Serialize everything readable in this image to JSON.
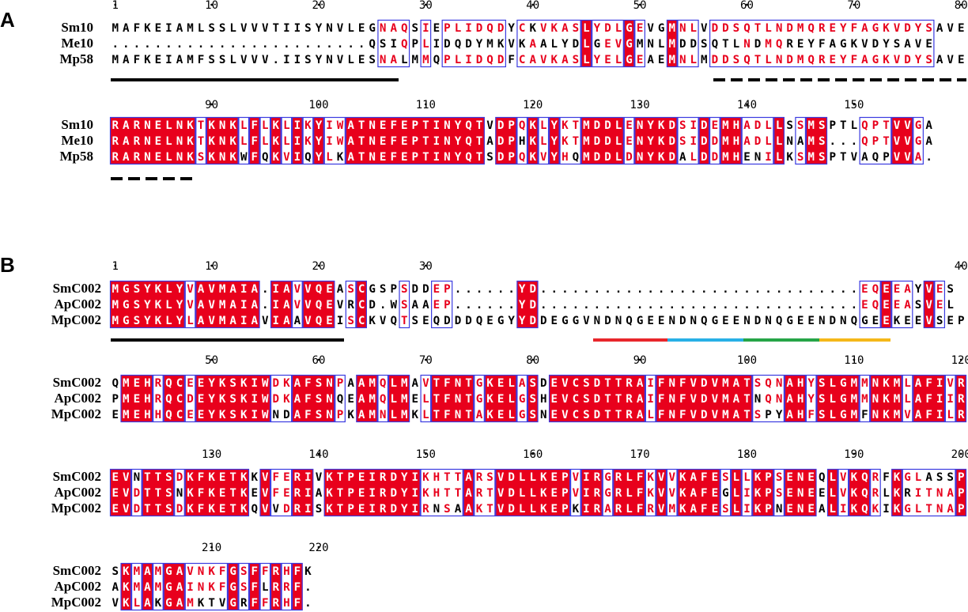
{
  "colors": {
    "identical_bg": "#e8001c",
    "identical_fg": "#ffffff",
    "similar_fg": "#e8001c",
    "box_border": "#3a3ae0",
    "plain_fg": "#000000",
    "feature_red": "#e8262b",
    "feature_blue": "#28b0e6",
    "feature_green": "#26a548",
    "feature_yellow": "#f5b81a"
  },
  "panels": [
    {
      "label": "A",
      "blocks": [
        {
          "names": [
            "Sm10",
            "Me10",
            "Mp58"
          ],
          "sequences": [
            "MAFKEIAMLSSLVVVTIISYNVLEGNAQSIEPLIDQDYCKVKASLYDLGEVGMNLVDDSQTLNDMQREYFAGKVDYSAVE",
            "........................QSIQPLIDQDYMKVKAALYDLGEVGMNLMDDSQTLNDMQREYFAGKVDYSAVE",
            "MAFKEIAMFSSLVVV.IISYNVLESNALMMQPLIDQDFCAVKASLYELGEAEMNLMDDSQTLNDMQREYFAGKVDYSAVE"
          ],
          "ruler_labels": [
            "1",
            "10",
            "20",
            "30",
            "40",
            "50",
            "60",
            "70",
            "80"
          ]
        },
        {
          "names": [
            "Sm10",
            "Me10",
            "Mp58"
          ],
          "sequences": [
            "RARNELNKTKNKLFLKLIKYIWATNEFEPTINYQTVDPQKLYKTMDDLENYKDSIDEMHADLLSSMSPTLQPTVVGA",
            "RARNELNKTKNKLFLKLIKYIWATNEFEPTINYQTADPHKLYKTMDDLENYKDSIDDMHADLLNAMS...QPTVVGA",
            "RARNELNKSKNKWFQKVIQYLKATNEFEPTINYQTSDPQKVYHQMDDLDNYKDALDDMHENILKSMSPTVAQPVVA."
          ],
          "ruler_labels": [
            "90",
            "100",
            "110",
            "120",
            "130",
            "140",
            "150"
          ]
        }
      ]
    },
    {
      "label": "B",
      "blocks": [
        {
          "names": [
            "SmC002",
            "ApC002",
            "MpC002"
          ],
          "sequences": [
            "MGSYKLYVAVMAIA.IAVVQEASCGSPSDDEP......YD..............................EQEEAYVES",
            "MGSYKLYVAVMAIA.IAVVQEVRCD.WSAAEP......YD..............................EQEEASVEL",
            "MGSYKLYLAVMAIAVIAAVQEISCKVQTSEQDDDQEGYYDDEGGVNDNQGEENDNQGEENDNQGEENDNQGEEKEEVSEP"
          ],
          "ruler_labels": [
            "1",
            "10",
            "20",
            "30",
            "40"
          ]
        },
        {
          "names": [
            "SmC002",
            "ApC002",
            "MpC002"
          ],
          "sequences": [
            "QMEHRQCEEYKSKIWDKAFSNPAAMQLMAVTFNTGKELASDEVCSDTTRAIFNFVDVMATSQNAHYSLGMMNKMLAFIVR",
            "PMEHRQCDEYKSKIWDKAFSNQEAMQLMELTFNTGKELGSHEVCSDTTRAIFNFVDVMATNQNAHYSLGMMNKMLAFIIR",
            "EMEHHQCEEYKSKIWNDAFSNPKAMNLMKLTFNTAKELGSNEVCSDTTRALFNFVDVMATSPYAHFSLGMFNKMVAFILR"
          ],
          "ruler_labels": [
            "50",
            "60",
            "70",
            "80",
            "90",
            "100",
            "110",
            "120"
          ]
        },
        {
          "names": [
            "SmC002",
            "ApC002",
            "MpC002"
          ],
          "sequences": [
            "EVNTTSDKFKETKKVFERIVKTPEIRDYIKHTTARSVDLLKEPVIRGRLFKVVKAFESLLKPSENEQLVKQRFKGLASSP",
            "EVDTTSNKFKETKEVFERIAKTPEIRDYIKHTTARTVDLLKEPVIRGRLFKVVKAFEGLIKPSENEELVKQRLKRITNAP",
            "EVDTTSDKFKETKQVVDRISKTPEIRDYIRNSAAKTVDLLKEPKIRARLFRVMKAFESLIKPNENEALIKQKIKGLTNAP"
          ],
          "ruler_labels": [
            "130",
            "140",
            "150",
            "160",
            "170",
            "180",
            "190",
            "200"
          ]
        },
        {
          "names": [
            "SmC002",
            "ApC002",
            "MpC002"
          ],
          "sequences": [
            "SKMAMGAVNKFGSFFRHFK",
            "AKMAMGAINKFGSFLRRF.",
            "VKLAKGAMKTVGRFFRHF."
          ],
          "ruler_labels": [
            "210",
            "220"
          ]
        }
      ]
    }
  ]
}
